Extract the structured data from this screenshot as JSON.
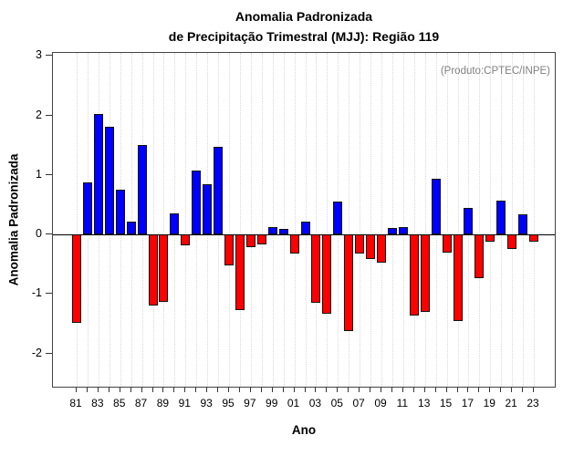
{
  "chart_data": {
    "type": "bar",
    "title_line1": "Anomalia Padronizada",
    "title_line2": "de Precipitação Trimestral (MJJ): Região 119",
    "annotation": "(Produto:CPTEC/INPE)",
    "xlabel": "Ano",
    "ylabel": "Anomalia Padronizada",
    "categories": [
      "81",
      "82",
      "83",
      "84",
      "85",
      "86",
      "87",
      "88",
      "89",
      "90",
      "91",
      "92",
      "93",
      "94",
      "95",
      "96",
      "97",
      "98",
      "99",
      "00",
      "01",
      "02",
      "03",
      "04",
      "05",
      "06",
      "07",
      "08",
      "09",
      "10",
      "11",
      "12",
      "13",
      "14",
      "15",
      "16",
      "17",
      "18",
      "19",
      "20",
      "21",
      "22",
      "23"
    ],
    "values": [
      -1.48,
      0.87,
      2.03,
      1.81,
      0.75,
      0.21,
      1.5,
      -1.2,
      -1.14,
      0.35,
      -0.18,
      1.07,
      0.84,
      1.47,
      -0.52,
      -1.27,
      -0.21,
      -0.17,
      0.13,
      0.09,
      -0.32,
      0.21,
      -1.15,
      -1.33,
      0.55,
      -1.63,
      -0.32,
      -0.41,
      -0.48,
      0.1,
      0.13,
      -1.36,
      -1.3,
      0.93,
      -0.31,
      -1.46,
      0.44,
      -0.73,
      -0.12,
      0.56,
      -0.25,
      0.33,
      -0.12
    ],
    "labeled_ticks": [
      "81",
      "83",
      "85",
      "87",
      "89",
      "91",
      "93",
      "95",
      "97",
      "99",
      "01",
      "03",
      "05",
      "07",
      "09",
      "11",
      "13",
      "15",
      "17",
      "19",
      "21",
      "23"
    ],
    "y_ticks": [
      3,
      2,
      1,
      0,
      -1,
      -2
    ],
    "ylim": [
      -2.59,
      3.05
    ],
    "positive_color": "#0000ff",
    "negative_color": "#ff0000",
    "bar_border_color": "#111111",
    "grid": "vertical dotted per year",
    "legend": "none"
  }
}
